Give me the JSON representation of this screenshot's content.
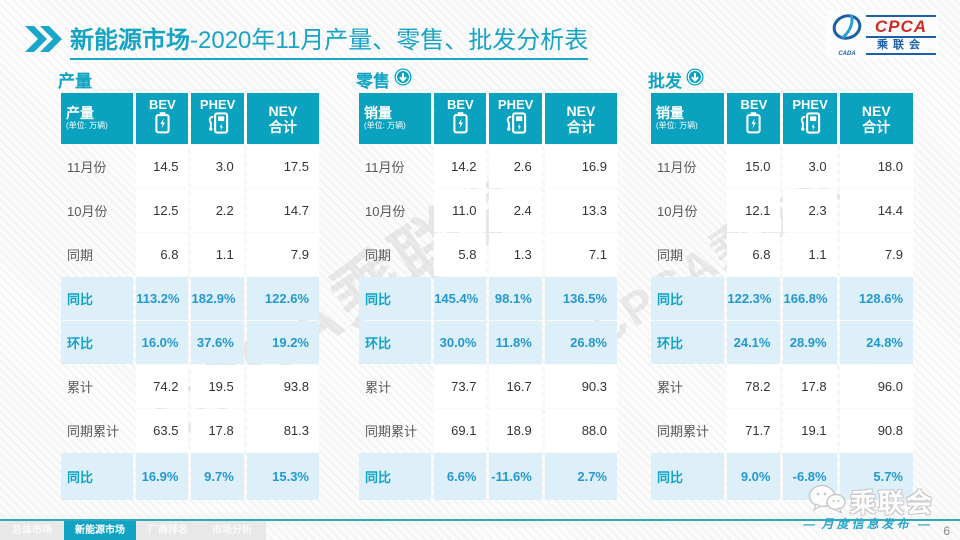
{
  "header": {
    "title_bold": "新能源市场",
    "title_rest": "-2020年11月产量、零售、批发分析表",
    "logo": {
      "cpca": "CPCA",
      "cada": "CADA",
      "org": "乘联会"
    }
  },
  "columns": {
    "bev": "BEV",
    "phev": "PHEV",
    "nev_line1": "NEV",
    "nev_line2": "合计"
  },
  "unit_sub": "(单位: 万辆)",
  "tables": [
    {
      "section": "产量",
      "arrow_icon": false,
      "unit_label": "产量",
      "rows": [
        {
          "label": "11月份",
          "values": [
            "14.5",
            "3.0",
            "17.5"
          ],
          "highlight": false
        },
        {
          "label": "10月份",
          "values": [
            "12.5",
            "2.2",
            "14.7"
          ],
          "highlight": false
        },
        {
          "label": "同期",
          "values": [
            "6.8",
            "1.1",
            "7.9"
          ],
          "highlight": false
        },
        {
          "label": "同比",
          "values": [
            "113.2%",
            "182.9%",
            "122.6%"
          ],
          "highlight": true
        },
        {
          "label": "环比",
          "values": [
            "16.0%",
            "37.6%",
            "19.2%"
          ],
          "highlight": true
        },
        {
          "label": "累计",
          "values": [
            "74.2",
            "19.5",
            "93.8"
          ],
          "highlight": false
        },
        {
          "label": "同期累计",
          "values": [
            "63.5",
            "17.8",
            "81.3"
          ],
          "highlight": false
        },
        {
          "label": "同比",
          "values": [
            "16.9%",
            "9.7%",
            "15.3%"
          ],
          "highlight": true
        }
      ]
    },
    {
      "section": "零售",
      "arrow_icon": true,
      "unit_label": "销量",
      "rows": [
        {
          "label": "11月份",
          "values": [
            "14.2",
            "2.6",
            "16.9"
          ],
          "highlight": false
        },
        {
          "label": "10月份",
          "values": [
            "11.0",
            "2.4",
            "13.3"
          ],
          "highlight": false
        },
        {
          "label": "同期",
          "values": [
            "5.8",
            "1.3",
            "7.1"
          ],
          "highlight": false
        },
        {
          "label": "同比",
          "values": [
            "145.4%",
            "98.1%",
            "136.5%"
          ],
          "highlight": true
        },
        {
          "label": "环比",
          "values": [
            "30.0%",
            "11.8%",
            "26.8%"
          ],
          "highlight": true
        },
        {
          "label": "累计",
          "values": [
            "73.7",
            "16.7",
            "90.3"
          ],
          "highlight": false
        },
        {
          "label": "同期累计",
          "values": [
            "69.1",
            "18.9",
            "88.0"
          ],
          "highlight": false
        },
        {
          "label": "同比",
          "values": [
            "6.6%",
            "-11.6%",
            "2.7%"
          ],
          "highlight": true
        }
      ]
    },
    {
      "section": "批发",
      "arrow_icon": true,
      "unit_label": "销量",
      "rows": [
        {
          "label": "11月份",
          "values": [
            "15.0",
            "3.0",
            "18.0"
          ],
          "highlight": false
        },
        {
          "label": "10月份",
          "values": [
            "12.1",
            "2.3",
            "14.4"
          ],
          "highlight": false
        },
        {
          "label": "同期",
          "values": [
            "6.8",
            "1.1",
            "7.9"
          ],
          "highlight": false
        },
        {
          "label": "同比",
          "values": [
            "122.3%",
            "166.8%",
            "128.6%"
          ],
          "highlight": true
        },
        {
          "label": "环比",
          "values": [
            "24.1%",
            "28.9%",
            "24.8%"
          ],
          "highlight": true
        },
        {
          "label": "累计",
          "values": [
            "78.2",
            "17.8",
            "96.0"
          ],
          "highlight": false
        },
        {
          "label": "同期累计",
          "values": [
            "71.7",
            "19.1",
            "90.8"
          ],
          "highlight": false
        },
        {
          "label": "同比",
          "values": [
            "9.0%",
            "-6.8%",
            "5.7%"
          ],
          "highlight": true
        }
      ]
    }
  ],
  "watermark": {
    "diagonal_text": "CPCA乘联会",
    "wechat_org": "乘联会",
    "monthly_release": "月度信息发布",
    "dash": "—"
  },
  "footer": {
    "tabs": [
      {
        "label": "总体市场",
        "active": false
      },
      {
        "label": "新能源市场",
        "active": true
      },
      {
        "label": "厂商排名",
        "active": false
      },
      {
        "label": "市场分析",
        "active": false
      }
    ],
    "page_number": "6"
  },
  "colors": {
    "primary_teal": "#0aa2bf",
    "highlight_row_bg": "#ddeff8",
    "highlight_value_text": "#2599cf",
    "title_teal": "#16a4c4",
    "logo_blue": "#1d5fa8",
    "logo_red": "#d22a23"
  }
}
